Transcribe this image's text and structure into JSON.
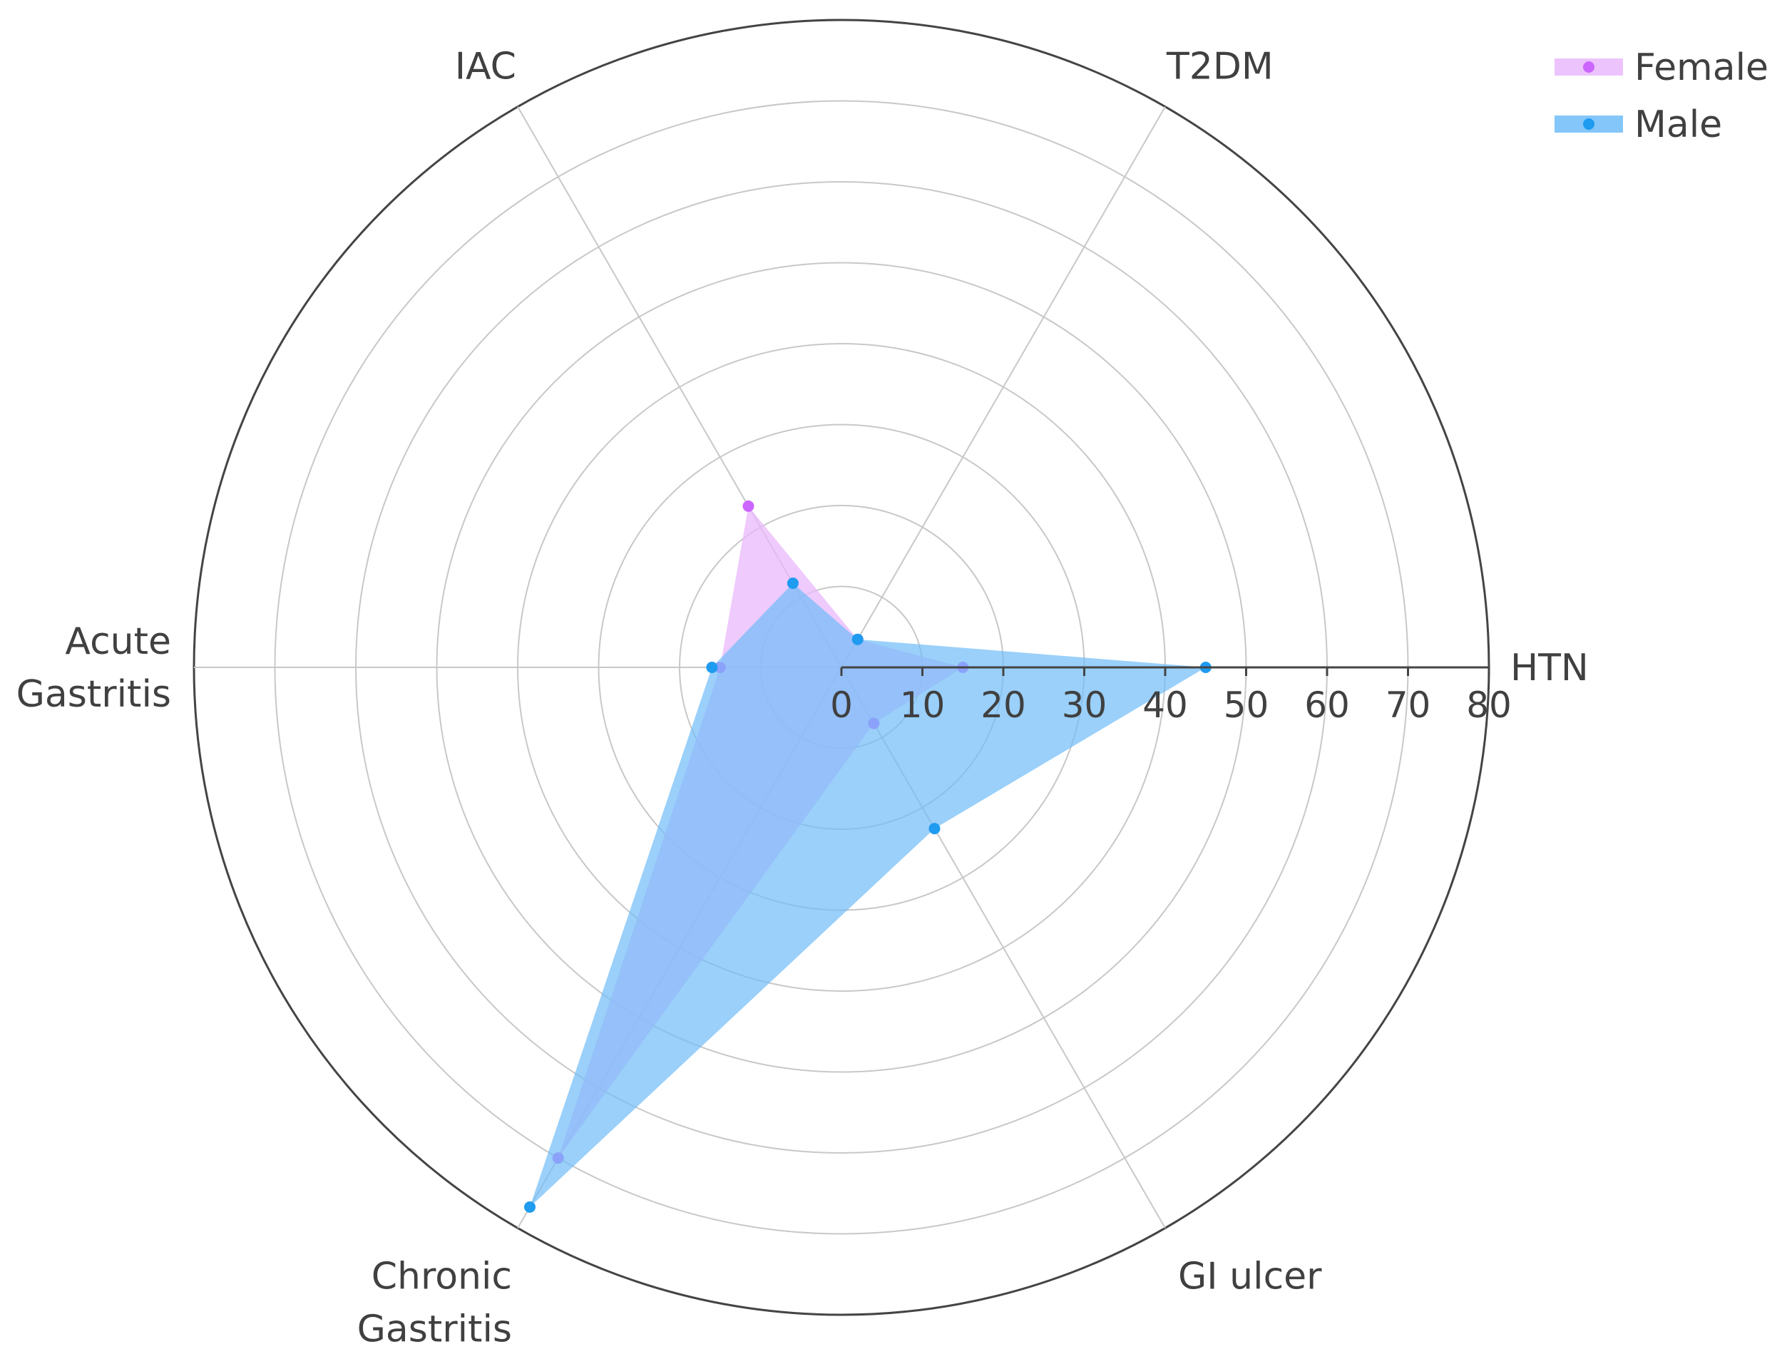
{
  "chart_data": {
    "type": "radar",
    "title": "",
    "categories": [
      "HTN",
      "T2DM",
      "IAC",
      "Acute Gastritis",
      "Chronic Gastritis",
      "GI ulcer"
    ],
    "category_label_lines": [
      [
        "HTN"
      ],
      [
        "T2DM"
      ],
      [
        "IAC"
      ],
      [
        "Acute",
        "Gastritis"
      ],
      [
        "Chronic",
        "Gastritis"
      ],
      [
        "GI ulcer"
      ]
    ],
    "radial_range": [
      0,
      80
    ],
    "radial_ticks": [
      0,
      10,
      20,
      30,
      40,
      50,
      60,
      70,
      80
    ],
    "series": [
      {
        "name": "Female",
        "values": [
          15,
          4,
          23,
          15,
          70,
          8
        ],
        "color": "#cc66ff",
        "fill": "#e9b8fb"
      },
      {
        "name": "Male",
        "values": [
          45,
          4,
          12,
          16,
          77,
          23
        ],
        "color": "#1f9bf0",
        "fill": "#6fbcf8"
      }
    ],
    "legend_position": "top-right",
    "grid": true
  }
}
